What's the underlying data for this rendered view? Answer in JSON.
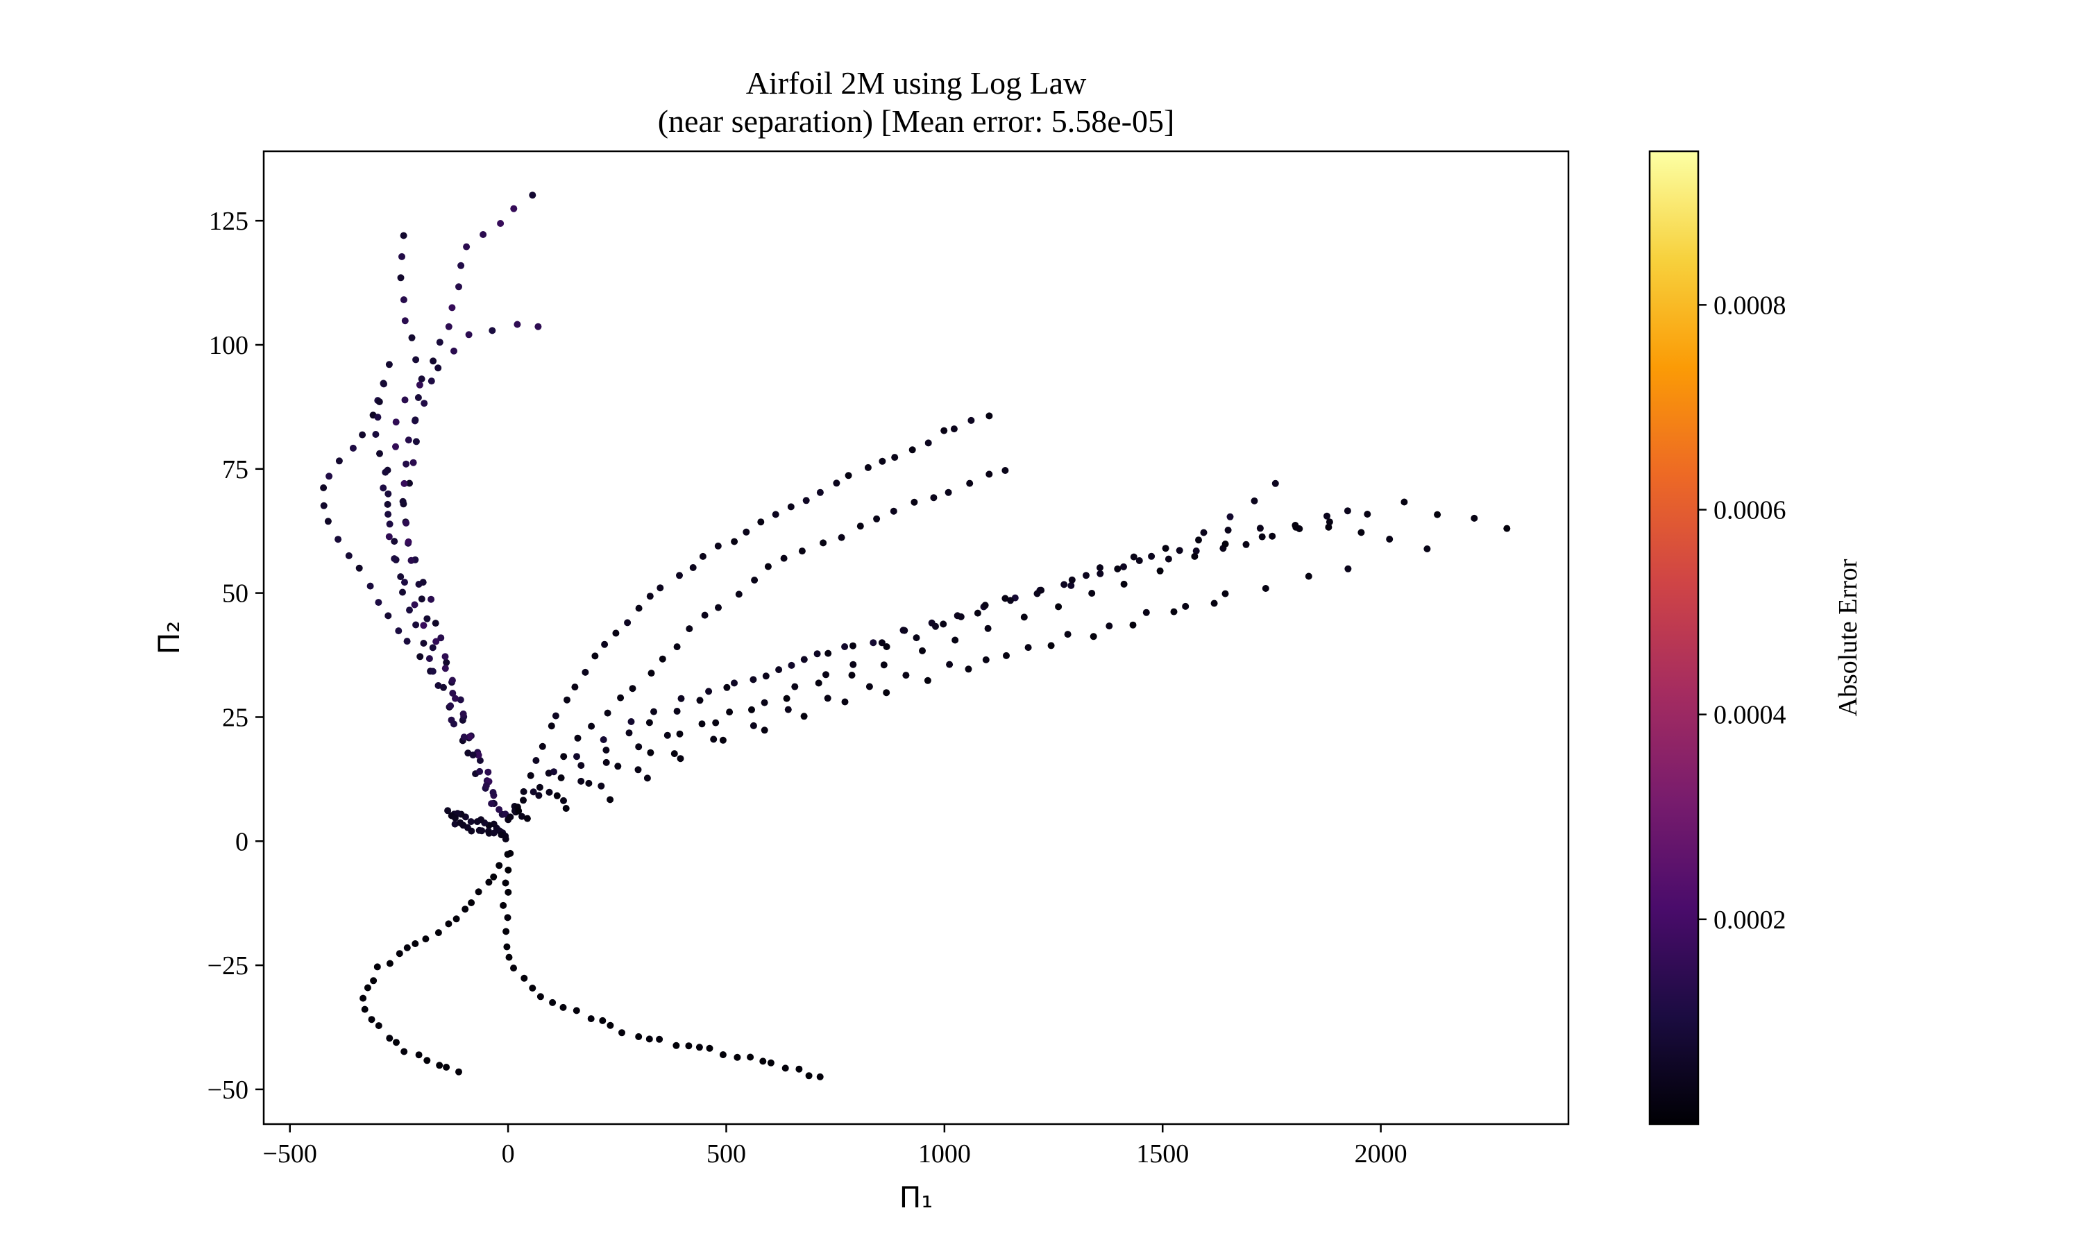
{
  "chart_data": {
    "type": "scatter",
    "title": "Airfoil 2M using Log Law",
    "subtitle": "(near separation) [Mean error: 5.58e-05]",
    "xlabel": "Π₁",
    "ylabel": "Π₂",
    "xlim": [
      -560,
      2430
    ],
    "ylim": [
      -57,
      139
    ],
    "xticks": [
      -500,
      0,
      500,
      1000,
      1500,
      2000
    ],
    "xtick_labels": [
      "−500",
      "0",
      "500",
      "1000",
      "1500",
      "2000"
    ],
    "yticks": [
      -50,
      -25,
      0,
      25,
      50,
      75,
      100,
      125
    ],
    "ytick_labels": [
      "−50",
      "−25",
      "0",
      "25",
      "50",
      "75",
      "100",
      "125"
    ],
    "grid": false,
    "legend": "none",
    "colormap": "inferno",
    "colorbar": {
      "label": "Absolute Error",
      "range": [
        0,
        0.00095
      ],
      "ticks": [
        0.0002,
        0.0004,
        0.0006,
        0.0008
      ],
      "tick_labels": [
        "0.0002",
        "0.0004",
        "0.0006",
        "0.0008"
      ]
    },
    "colormap_stops": [
      "#000004",
      "#1b0c41",
      "#4a0c6b",
      "#781c6d",
      "#a52c60",
      "#cf4446",
      "#ed6925",
      "#fb9b06",
      "#f7d13d",
      "#fcffa4"
    ],
    "branches": [
      {
        "name": "",
        "n": 30,
        "err": 5e-05,
        "pts": [
          [
            0,
            1.5
          ],
          [
            -30,
            3
          ],
          [
            -90,
            4.5
          ],
          [
            -133,
            6
          ],
          [
            -125,
            3.8
          ],
          [
            -85,
            2.6
          ],
          [
            -40,
            1.7
          ],
          [
            0,
            1
          ]
        ]
      },
      {
        "name": "",
        "n": 30,
        "err": 0.0001,
        "pts": [
          [
            -15,
            5
          ],
          [
            -60,
            14
          ],
          [
            -110,
            28
          ],
          [
            -170,
            45
          ],
          [
            -215,
            58
          ],
          [
            -240,
            65
          ],
          [
            -220,
            78
          ],
          [
            -200,
            92
          ],
          [
            -240,
            108
          ],
          [
            -245,
            122
          ]
        ]
      },
      {
        "name": "",
        "n": 34,
        "err": 0.00012,
        "pts": [
          [
            -20,
            6
          ],
          [
            -65,
            18
          ],
          [
            -120,
            30
          ],
          [
            -165,
            40
          ],
          [
            -215,
            55
          ],
          [
            -240,
            68
          ],
          [
            -225,
            80
          ],
          [
            -195,
            88
          ],
          [
            -170,
            96
          ],
          [
            -130,
            107
          ],
          [
            -95,
            120
          ],
          [
            -20,
            125
          ],
          [
            50,
            130
          ]
        ]
      },
      {
        "name": "",
        "n": 26,
        "err": 0.00013,
        "pts": [
          [
            -30,
            8
          ],
          [
            -75,
            20
          ],
          [
            -140,
            33
          ],
          [
            -210,
            46
          ],
          [
            -260,
            55
          ],
          [
            -285,
            68
          ],
          [
            -265,
            78
          ],
          [
            -240,
            90
          ],
          [
            -160,
            95
          ],
          [
            -110,
            100
          ],
          [
            -70,
            103
          ],
          [
            70,
            104
          ]
        ]
      },
      {
        "name": "",
        "n": 30,
        "err": 9e-05,
        "pts": [
          [
            -10,
            5
          ],
          [
            -80,
            14
          ],
          [
            -150,
            30
          ],
          [
            -210,
            38
          ],
          [
            -270,
            45
          ],
          [
            -340,
            54
          ],
          [
            -400,
            62
          ],
          [
            -430,
            70
          ],
          [
            -390,
            76
          ],
          [
            -330,
            82
          ],
          [
            -290,
            90
          ],
          [
            -270,
            96
          ]
        ]
      },
      {
        "name": "",
        "n": 26,
        "err": 0.0001,
        "pts": [
          [
            -35,
            8
          ],
          [
            -110,
            22
          ],
          [
            -180,
            36
          ],
          [
            -240,
            50
          ],
          [
            -270,
            62
          ],
          [
            -285,
            74
          ],
          [
            -300,
            82
          ],
          [
            -290,
            92
          ]
        ]
      },
      {
        "name": "",
        "n": 40,
        "err": 4e-05,
        "pts": [
          [
            5,
            4
          ],
          [
            40,
            12
          ],
          [
            100,
            24
          ],
          [
            200,
            38
          ],
          [
            330,
            50
          ],
          [
            500,
            60
          ],
          [
            700,
            70
          ],
          [
            900,
            78
          ],
          [
            1010,
            83
          ],
          [
            1100,
            86
          ]
        ]
      },
      {
        "name": "",
        "n": 32,
        "err": 3e-05,
        "pts": [
          [
            10,
            5
          ],
          [
            60,
            10
          ],
          [
            150,
            20
          ],
          [
            300,
            32
          ],
          [
            450,
            45
          ],
          [
            600,
            55
          ],
          [
            800,
            63
          ],
          [
            920,
            68
          ],
          [
            1020,
            71
          ],
          [
            1140,
            75
          ]
        ]
      },
      {
        "name": "",
        "n": 30,
        "err": 6e-05,
        "pts": [
          [
            15,
            6
          ],
          [
            80,
            12
          ],
          [
            200,
            20
          ],
          [
            350,
            27
          ],
          [
            500,
            31
          ],
          [
            700,
            37
          ],
          [
            900,
            42
          ],
          [
            1100,
            47
          ],
          [
            1300,
            52
          ],
          [
            1520,
            58
          ],
          [
            1760,
            72
          ]
        ]
      },
      {
        "name": "",
        "n": 34,
        "err": 4e-05,
        "pts": [
          [
            20,
            6
          ],
          [
            120,
            13
          ],
          [
            280,
            22
          ],
          [
            460,
            29
          ],
          [
            650,
            36
          ],
          [
            850,
            40
          ],
          [
            1050,
            46
          ],
          [
            1250,
            51
          ],
          [
            1450,
            56
          ],
          [
            1700,
            60
          ],
          [
            1930,
            67
          ]
        ]
      },
      {
        "name": "",
        "n": 30,
        "err": 3e-05,
        "pts": [
          [
            25,
            7
          ],
          [
            150,
            12
          ],
          [
            330,
            20
          ],
          [
            520,
            26
          ],
          [
            720,
            33
          ],
          [
            920,
            41
          ],
          [
            1130,
            48
          ],
          [
            1380,
            56
          ],
          [
            1620,
            62
          ],
          [
            1860,
            64
          ],
          [
            2100,
            59
          ]
        ]
      },
      {
        "name": "",
        "n": 30,
        "err": 2e-05,
        "pts": [
          [
            30,
            6
          ],
          [
            200,
            12
          ],
          [
            400,
            22
          ],
          [
            600,
            28
          ],
          [
            800,
            34
          ],
          [
            1000,
            40
          ],
          [
            1200,
            46
          ],
          [
            1450,
            53
          ],
          [
            1700,
            61
          ],
          [
            2050,
            68
          ],
          [
            2290,
            63
          ]
        ]
      },
      {
        "name": "",
        "n": 22,
        "err": 3e-05,
        "pts": [
          [
            35,
            5
          ],
          [
            180,
            10
          ],
          [
            340,
            16
          ],
          [
            520,
            22
          ],
          [
            700,
            28
          ],
          [
            900,
            33
          ],
          [
            1100,
            37
          ],
          [
            1320,
            42
          ],
          [
            1560,
            48
          ],
          [
            1780,
            52
          ],
          [
            1920,
            55
          ]
        ]
      },
      {
        "name": "",
        "n": 18,
        "err": 2e-05,
        "pts": [
          [
            40,
            5
          ],
          [
            220,
            8
          ],
          [
            420,
            18
          ],
          [
            620,
            24
          ],
          [
            850,
            30
          ],
          [
            1050,
            35
          ],
          [
            1250,
            39
          ],
          [
            1480,
            45
          ],
          [
            1620,
            48
          ]
        ]
      },
      {
        "name": "",
        "n": 30,
        "err": 1e-05,
        "pts": [
          [
            -5,
            -3
          ],
          [
            -60,
            -10
          ],
          [
            -140,
            -17
          ],
          [
            -220,
            -21
          ],
          [
            -290,
            -25
          ],
          [
            -330,
            -30
          ],
          [
            -320,
            -35
          ],
          [
            -270,
            -40
          ],
          [
            -200,
            -44
          ],
          [
            -110,
            -46
          ]
        ]
      },
      {
        "name": "",
        "n": 36,
        "err": 1e-05,
        "pts": [
          [
            0,
            -3
          ],
          [
            -5,
            -10
          ],
          [
            -5,
            -18
          ],
          [
            5,
            -24
          ],
          [
            30,
            -28
          ],
          [
            100,
            -32
          ],
          [
            200,
            -36
          ],
          [
            330,
            -40
          ],
          [
            450,
            -42
          ],
          [
            560,
            -44
          ],
          [
            660,
            -46
          ],
          [
            720,
            -48
          ]
        ]
      }
    ]
  }
}
